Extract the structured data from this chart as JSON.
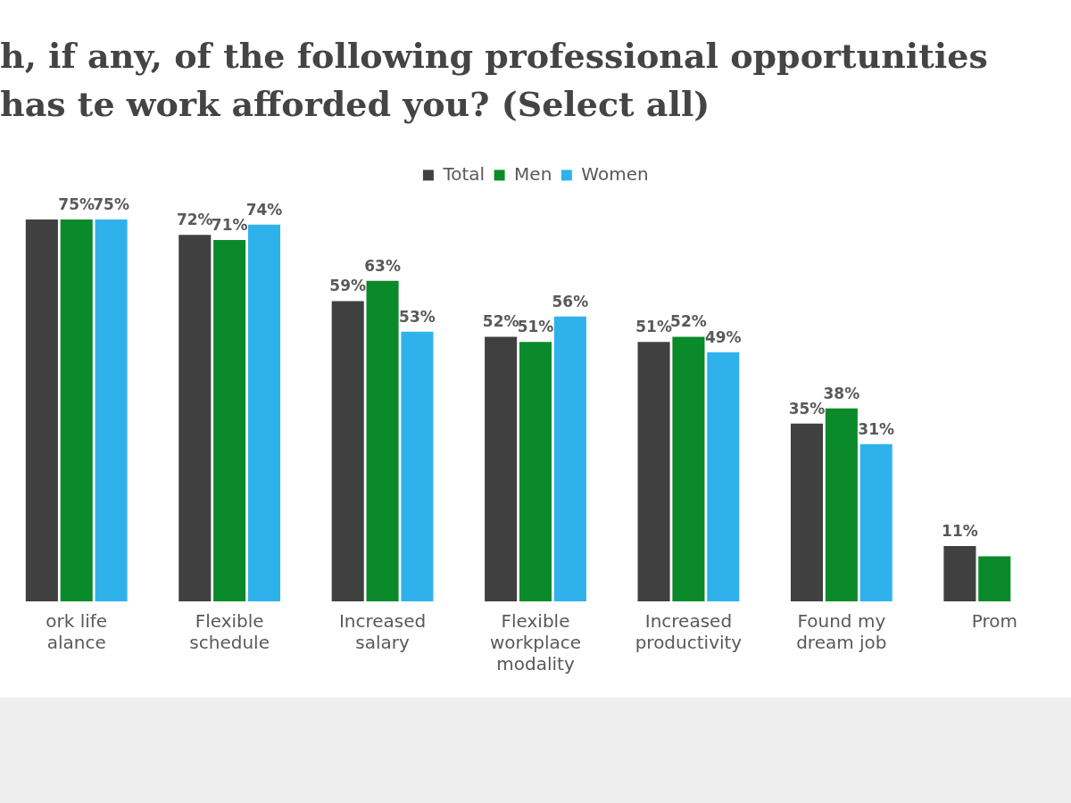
{
  "chart_data": {
    "type": "bar",
    "title": "h, if any, of the following professional opportunities has te work afforded you? (Select all)",
    "categories": [
      "ork life alance",
      "Flexible schedule",
      "Increased salary",
      "Flexible workplace modality",
      "Increased productivity",
      "Found my dream job",
      "Prom"
    ],
    "series": [
      {
        "name": "Total",
        "color": "#404040",
        "values": [
          75,
          72,
          59,
          52,
          51,
          35,
          11
        ],
        "value_labels": [
          null,
          "72%",
          "59%",
          "52%",
          "51%",
          "35%",
          "11%"
        ]
      },
      {
        "name": "Men",
        "color": "#0a8a2a",
        "values": [
          75,
          71,
          63,
          51,
          52,
          38,
          9
        ],
        "value_labels": [
          "75%",
          "71%",
          "63%",
          "51%",
          "52%",
          "38%",
          null
        ]
      },
      {
        "name": "Women",
        "color": "#2fb2ec",
        "values": [
          75,
          74,
          53,
          56,
          49,
          31,
          null
        ],
        "value_labels": [
          "75%",
          "74%",
          "53%",
          "56%",
          "49%",
          "31%",
          null
        ]
      }
    ],
    "legend": "top",
    "grid": false
  }
}
